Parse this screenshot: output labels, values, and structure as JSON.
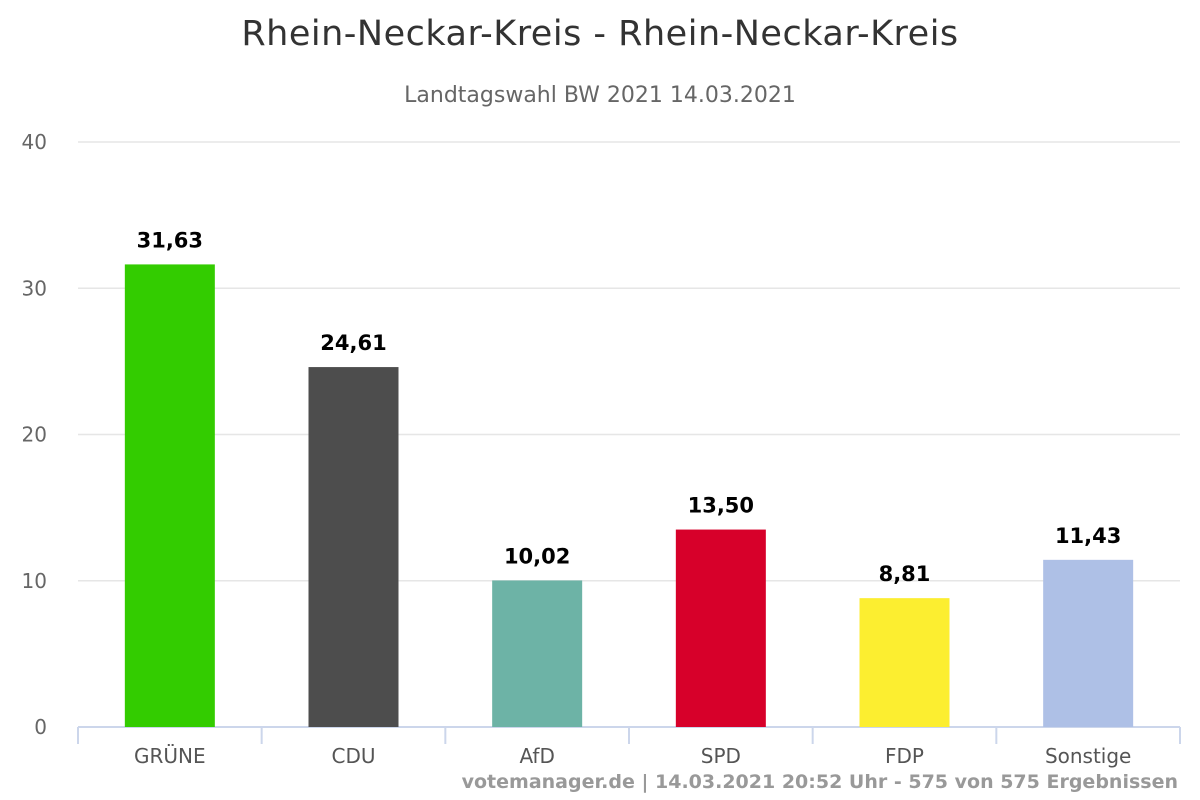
{
  "chart_data": {
    "type": "bar",
    "title": "Rhein-Neckar-Kreis - Rhein-Neckar-Kreis",
    "subtitle": "Landtagswahl BW 2021 14.03.2021",
    "categories": [
      "GRÜNE",
      "CDU",
      "AfD",
      "SPD",
      "FDP",
      "Sonstige"
    ],
    "values": [
      31.63,
      24.61,
      10.02,
      13.5,
      8.81,
      11.43
    ],
    "value_labels": [
      "31,63",
      "24,61",
      "10,02",
      "13,50",
      "8,81",
      "11,43"
    ],
    "colors": [
      "#33cc00",
      "#4d4d4d",
      "#6db3a6",
      "#d7002a",
      "#fcee30",
      "#aec0e6"
    ],
    "ylim": [
      0,
      40
    ],
    "yticks": [
      0,
      10,
      20,
      30,
      40
    ],
    "grid": true,
    "legend": "none",
    "credits": "votemanager.de | 14.03.2021 20:52 Uhr - 575 von 575 Ergebnissen"
  }
}
